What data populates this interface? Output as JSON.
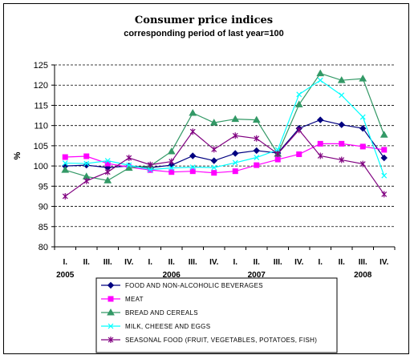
{
  "chart_data": {
    "type": "line",
    "title": "Consumer price indices",
    "subtitle": "corresponding period of last year=100",
    "ylabel": "%",
    "xlabel": "",
    "ylim": [
      80,
      125
    ],
    "ytick_step": 5,
    "grid": "horizontal dashed",
    "legend_position": "bottom",
    "categories": [
      "I.",
      "II.",
      "III.",
      "IV.",
      "I.",
      "II.",
      "III.",
      "IV.",
      "I.",
      "II.",
      "III.",
      "IV.",
      "I.",
      "II.",
      "III.",
      "IV."
    ],
    "years": [
      {
        "label": "2005",
        "quarter_index": 0
      },
      {
        "label": "2006",
        "quarter_index": 5
      },
      {
        "label": "2007",
        "quarter_index": 9
      },
      {
        "label": "2008",
        "quarter_index": 14
      }
    ],
    "series": [
      {
        "name": "FOOD AND NON-ALCOHOLIC BEVERAGES",
        "color": "#000080",
        "marker": "diamond",
        "values": [
          100.0,
          100.2,
          99.6,
          100.0,
          99.6,
          100.2,
          102.5,
          101.3,
          103.1,
          103.8,
          103.2,
          109.3,
          111.4,
          110.2,
          109.3,
          102.0
        ]
      },
      {
        "name": "MEAT",
        "color": "#ff00ff",
        "marker": "square",
        "values": [
          102.2,
          102.4,
          100.6,
          99.7,
          99.0,
          98.5,
          98.7,
          98.3,
          98.7,
          100.2,
          101.6,
          102.9,
          105.5,
          105.5,
          104.8,
          104.0
        ]
      },
      {
        "name": "BREAD AND CEREALS",
        "color": "#339966",
        "marker": "triangle",
        "values": [
          99.0,
          97.4,
          96.4,
          99.5,
          100.0,
          103.6,
          113.1,
          110.7,
          111.6,
          111.4,
          103.0,
          115.2,
          122.9,
          121.2,
          121.6,
          107.7
        ]
      },
      {
        "name": "MILK, CHEESE AND EGGS",
        "color": "#00ffff",
        "marker": "x",
        "values": [
          100.7,
          100.6,
          101.3,
          100.2,
          99.1,
          99.5,
          99.7,
          99.6,
          100.8,
          102.1,
          104.0,
          117.7,
          121.2,
          117.5,
          112.1,
          97.6
        ]
      },
      {
        "name": "SEASONAL FOOD (FRUIT, VEGETABLES, POTATOES, FISH)",
        "color": "#800080",
        "marker": "star",
        "values": [
          92.5,
          96.3,
          98.5,
          102.0,
          100.3,
          101.1,
          108.5,
          104.1,
          107.5,
          106.8,
          103.0,
          108.9,
          102.5,
          101.5,
          100.5,
          93.0
        ]
      }
    ]
  }
}
